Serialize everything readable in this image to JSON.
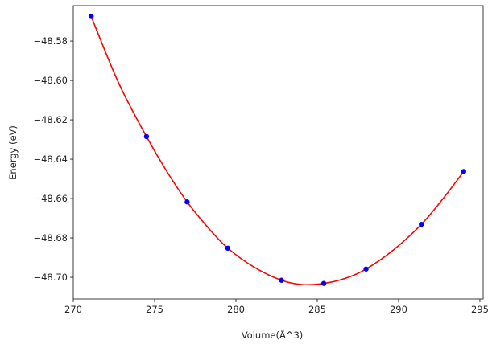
{
  "chart_data": {
    "type": "scatter",
    "title": "",
    "xlabel": "Volume(Å^3)",
    "ylabel": "Energy (eV)",
    "xlim": [
      270.0,
      295.2
    ],
    "ylim": [
      -48.711,
      -48.562
    ],
    "x_ticks": [
      270,
      275,
      280,
      285,
      290,
      295
    ],
    "x_tick_labels": [
      "270",
      "275",
      "280",
      "285",
      "290",
      "295"
    ],
    "y_ticks": [
      -48.7,
      -48.68,
      -48.66,
      -48.64,
      -48.62,
      -48.6,
      -48.58
    ],
    "y_tick_labels": [
      "−48.70",
      "−48.68",
      "−48.66",
      "−48.64",
      "−48.62",
      "−48.60",
      "−48.58"
    ],
    "grid": false,
    "series": [
      {
        "kind": "points",
        "color": "#0000ff",
        "x": [
          271.1,
          274.5,
          277.0,
          279.5,
          282.8,
          285.4,
          288.0,
          291.4,
          294.0
        ],
        "y": [
          -48.5675,
          -48.6285,
          -48.6617,
          -48.6852,
          -48.7015,
          -48.7031,
          -48.6958,
          -48.6731,
          -48.6463
        ]
      },
      {
        "kind": "fit-curve",
        "color": "#ff0000",
        "x": [
          271.1,
          272.8,
          274.5,
          275.75,
          277.0,
          278.25,
          279.5,
          281.15,
          282.8,
          284.1,
          285.4,
          286.7,
          288.0,
          289.7,
          291.4,
          292.7,
          294.0
        ],
        "y": [
          -48.5675,
          -48.6015,
          -48.6285,
          -48.6462,
          -48.6617,
          -48.6744,
          -48.6852,
          -48.695,
          -48.7015,
          -48.7037,
          -48.7031,
          -48.7006,
          -48.6958,
          -48.686,
          -48.6731,
          -48.6604,
          -48.6463
        ]
      }
    ]
  }
}
